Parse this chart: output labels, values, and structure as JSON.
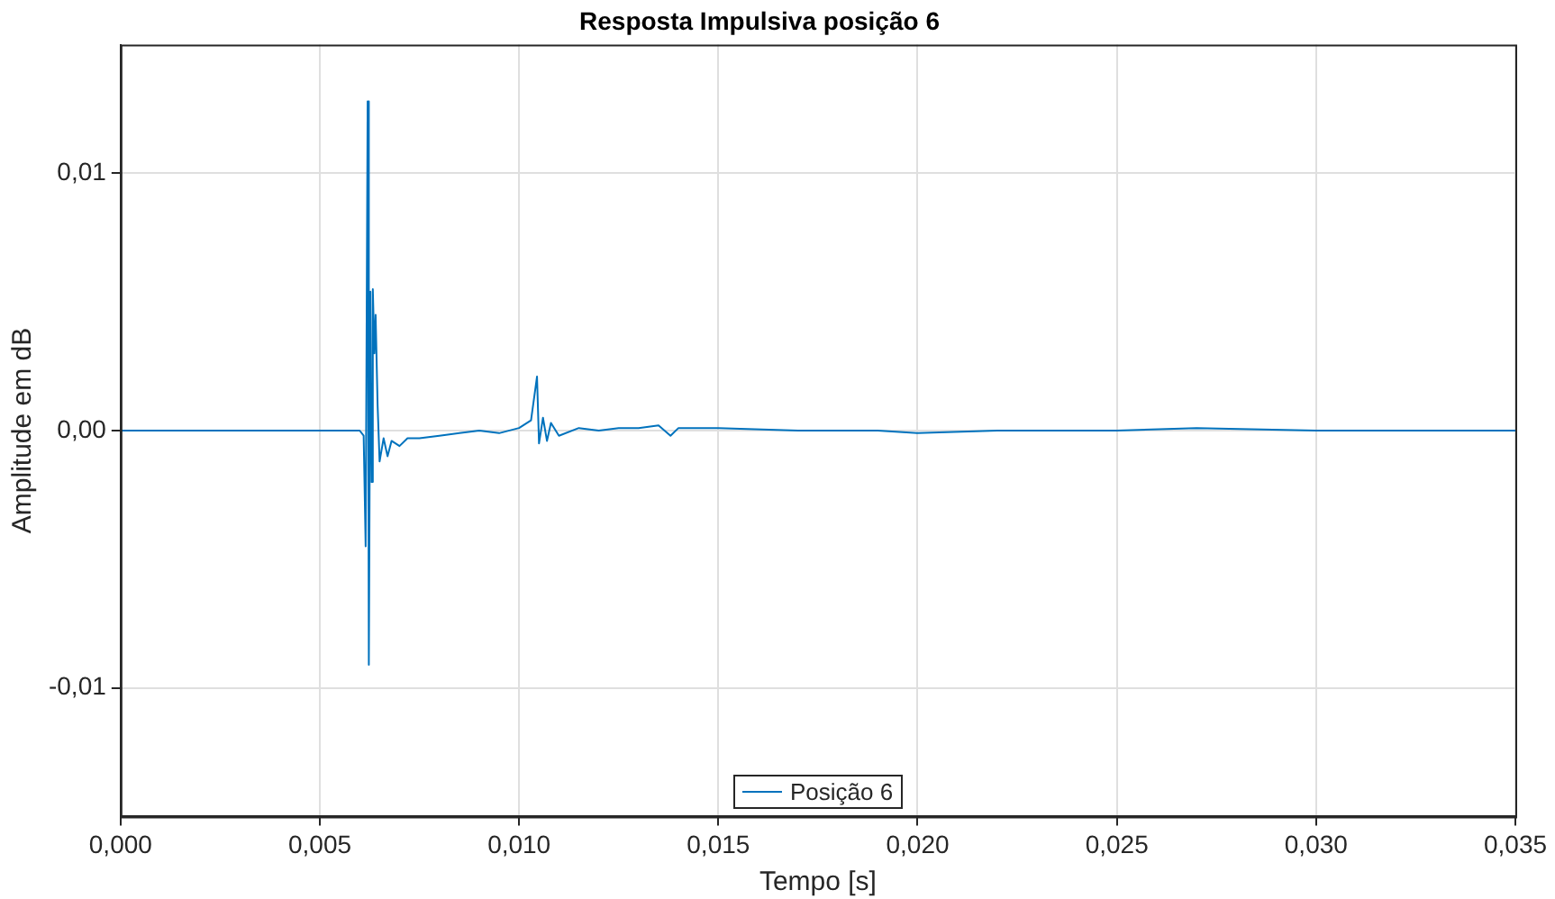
{
  "chart_data": {
    "type": "line",
    "title": "Resposta Impulsiva posição 6",
    "xlabel": "Tempo [s]",
    "ylabel": "Amplitude em dB",
    "x": [
      0,
      0.006,
      0.0061,
      0.00615,
      0.0062,
      0.00623,
      0.00627,
      0.0063,
      0.00633,
      0.00637,
      0.0064,
      0.00645,
      0.0065,
      0.0066,
      0.0067,
      0.0068,
      0.007,
      0.0072,
      0.0075,
      0.008,
      0.009,
      0.0095,
      0.01,
      0.0103,
      0.01045,
      0.0105,
      0.0106,
      0.0107,
      0.0108,
      0.011,
      0.0115,
      0.012,
      0.0125,
      0.013,
      0.0135,
      0.0138,
      0.014,
      0.015,
      0.017,
      0.019,
      0.02,
      0.022,
      0.025,
      0.027,
      0.03,
      0.035
    ],
    "series": [
      {
        "name": "Posição 6",
        "color": "#0072bd",
        "values": [
          0,
          0,
          -0.0002,
          -0.0045,
          0.0128,
          -0.0091,
          0.0054,
          -0.002,
          0.0055,
          0.003,
          0.0045,
          0.001,
          -0.0012,
          -0.0003,
          -0.001,
          -0.0004,
          -0.0006,
          -0.0003,
          -0.0003,
          -0.0002,
          0,
          -0.0001,
          0.0001,
          0.0004,
          0.0021,
          -0.0005,
          0.0005,
          -0.0004,
          0.0003,
          -0.0002,
          0.0001,
          0,
          0.0001,
          0.0001,
          0.0002,
          -0.0002,
          0.0001,
          0.0001,
          0,
          0,
          -0.0001,
          0,
          0,
          0.0001,
          0,
          0
        ]
      }
    ],
    "xlim": [
      0,
      0.035
    ],
    "xticks": [
      {
        "value": 0,
        "label": "0,000"
      },
      {
        "value": 0.005,
        "label": "0,005"
      },
      {
        "value": 0.01,
        "label": "0,010"
      },
      {
        "value": 0.015,
        "label": "0,015"
      },
      {
        "value": 0.02,
        "label": "0,020"
      },
      {
        "value": 0.025,
        "label": "0,025"
      },
      {
        "value": 0.03,
        "label": "0,030"
      },
      {
        "value": 0.035,
        "label": "0,035"
      }
    ],
    "ylim": [
      -0.015,
      0.015
    ],
    "yticks": [
      {
        "value": -0.01,
        "label": "-0,01"
      },
      {
        "value": 0,
        "label": "0,00"
      },
      {
        "value": 0.01,
        "label": "0,01"
      }
    ],
    "grid": true,
    "legend": "bottom",
    "marker": "none",
    "line_style": "solid"
  }
}
